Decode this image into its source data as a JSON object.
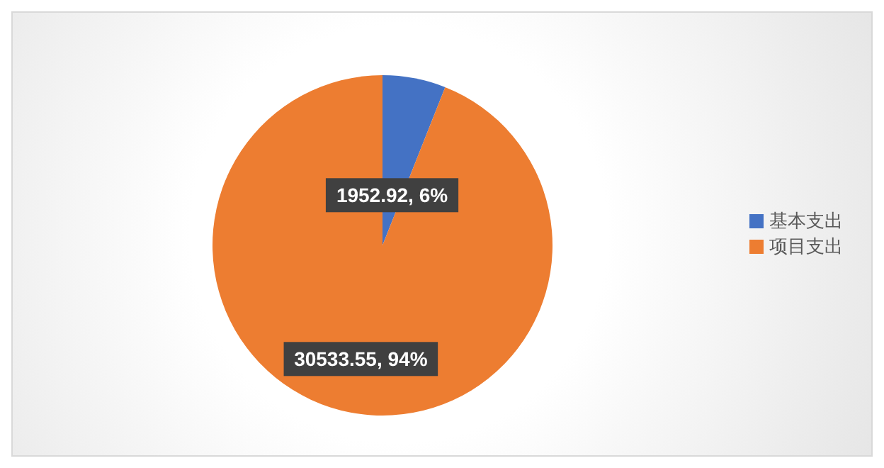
{
  "chart_data": {
    "type": "pie",
    "categories": [
      "基本支出",
      "项目支出"
    ],
    "values": [
      1952.92,
      30533.55
    ],
    "colors": [
      "#4472c4",
      "#ed7d31"
    ],
    "value_labels": [
      "1952.92, 6%",
      "30533.55, 94%"
    ],
    "legend": "right"
  }
}
